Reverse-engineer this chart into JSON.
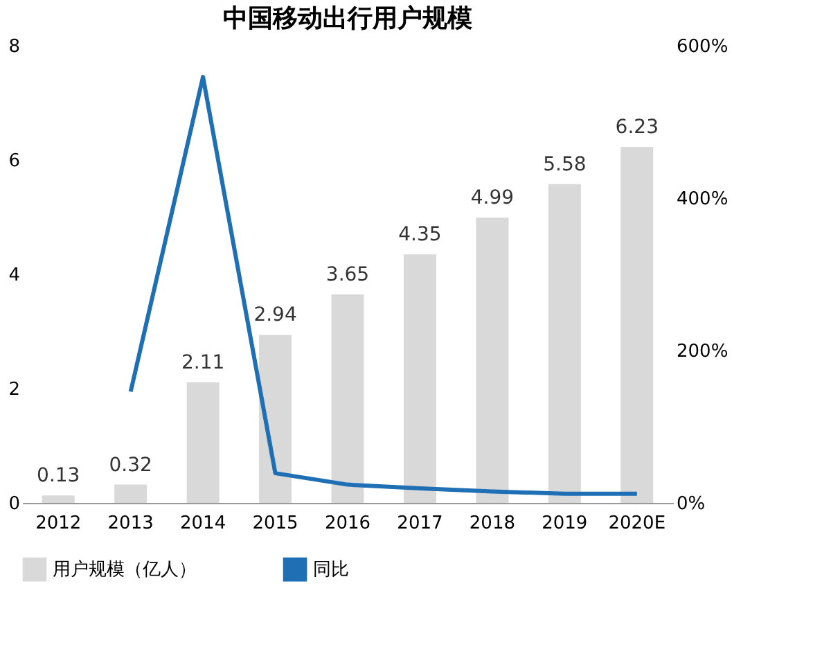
{
  "chart_data": {
    "type": "bar",
    "title": "中国移动出行用户规模",
    "categories": [
      "2012",
      "2013",
      "2014",
      "2015",
      "2016",
      "2017",
      "2018",
      "2019",
      "2020E"
    ],
    "series": [
      {
        "name": "用户规模（亿人）",
        "color": "#d9d9d9",
        "values": [
          0.13,
          0.32,
          2.11,
          2.94,
          3.65,
          4.35,
          4.99,
          5.58,
          6.23
        ],
        "value_labels": [
          "0.13",
          "0.32",
          "2.11",
          "2.94",
          "3.65",
          "4.35",
          "4.99",
          "5.58",
          "6.23"
        ]
      },
      {
        "name": "同比",
        "type": "line",
        "axis": "y2",
        "color": "#1f6fb5",
        "values": [
          null,
          146,
          559,
          39,
          24,
          19,
          15,
          12,
          12
        ]
      }
    ],
    "ylim": [
      0,
      8
    ],
    "yticks": [
      0,
      2,
      4,
      6,
      8
    ],
    "y2lim": [
      0,
      600
    ],
    "y2ticks": [
      {
        "value": 0,
        "label": "0%"
      },
      {
        "value": 200,
        "label": "200%"
      },
      {
        "value": 400,
        "label": "400%"
      },
      {
        "value": 600,
        "label": "600%"
      }
    ],
    "legend": "bottom",
    "grid": false
  }
}
